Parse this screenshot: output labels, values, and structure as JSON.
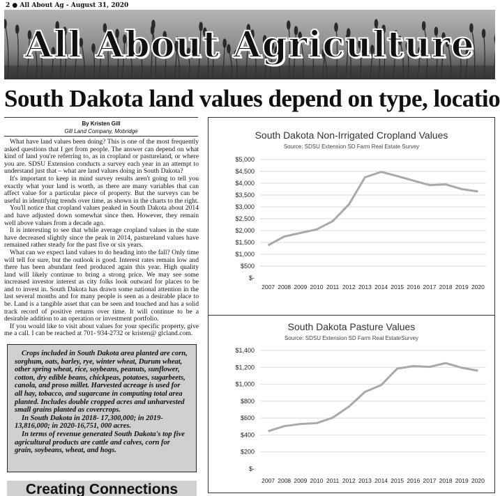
{
  "page": {
    "folio": "2 ● All About Ag - August 31, 2020",
    "banner_title": "All About Agriculture"
  },
  "article": {
    "headline": "South Dakota land values depend on type, location",
    "author": "By Kristen Gill",
    "affiliation": "Gill Land Company, Mobridge",
    "paragraphs": [
      "What have land values been doing? This is one of the most frequently asked questions that I get from people. The answer can depend on what kind of land you're referring to, as in cropland or pastureland, or where you are. SDSU Extension conducts a survey each year in an attempt to understand just that – what are land values doing in South Dakota?",
      "It's important to keep in mind survey results aren't going to tell you exactly what your land is worth, as there are many variables that can affect value for a particular piece of property. But the surveys can be useful in identifying trends over time, as shown in the charts to the right.",
      "You'll notice that cropland values peaked in South Dakota about 2014 and have adjusted down somewhat since then. However, they remain well above values from a decade ago.",
      "It is interesting to see that while average cropland values in the state have decreased slightly since the peak in 2014, pastureland values have remained rather steady for the past five or six years.",
      "What can we expect land values to do heading into the fall? Only time will tell for sure, but the outlook is good. Interest rates remain low and there has been abundant feed produced again this year. High quality land will likely continue to bring a strong price. We may see some increased investor interest as city folks look outward for places to be and to invest in. South Dakota has drawn some national attention in the last several months and for many people is seen as a desirable place to be. Land is a tangible asset that can be seen and touched and has a solid track record of positive returns over time. It will continue to be a desirable addition to an operation or investment portfolio.",
      "If you would like to visit about values for your specific property, give me a call. I can be reached at 701- 934-2732 or kristen@ glcland.com."
    ]
  },
  "sidebar": {
    "paragraphs": [
      "Crops included in South Dakota area planted are corn, sorghum, oats, barley, rye, winter wheat, Durum wheat, other spring wheat, rice, soybeans, peanuts, sunflower, cotton, dry edible beans, chickpeas, potatoes, sugarbeets, canola, and proso millet. Harvested acreage is used for all hay, tobacco, and sugarcane in computing total area planted. Includes double cropped acres and unharvested small grains planted as covercrops.",
      "In South Dakota in 2018- 17,300,000; in 2019- 13,816,000; in 2020-16,751, 000 acres.",
      "In terms of revenue generated South Dakota's top five agricultural products are cattle and calves, corn for grain, soybeans, wheat, and hogs."
    ]
  },
  "next_section": {
    "heading": "Creating Connections"
  },
  "chart_data": [
    {
      "type": "line",
      "title": "South Dakota Non-Irrigated Cropland Values",
      "subtitle": "Source: SDSU Extension SD Farm Real Estate Survey",
      "x": [
        "2007",
        "2008",
        "2009",
        "2010",
        "2011",
        "2012",
        "2013",
        "2014",
        "2015",
        "2016",
        "2017",
        "2018",
        "2019",
        "2020"
      ],
      "series": [
        {
          "values": [
            1380,
            1750,
            1900,
            2050,
            2400,
            3100,
            4250,
            4480,
            4300,
            4110,
            3920,
            3950,
            3750,
            3650
          ]
        }
      ],
      "y_ticks": [
        "$5,000",
        "$4,500",
        "$4,000",
        "$3,500",
        "$3,000",
        "$2,500",
        "$2,000",
        "$1,500",
        "$1,000",
        "$500",
        "$-"
      ],
      "ylim": [
        0,
        5000
      ],
      "grid": true,
      "line_color": "#a9a9a9"
    },
    {
      "type": "line",
      "title": "South Dakota Pasture Values",
      "subtitle": "Source: SDSU Extension SD Farm Real EstateSurvey",
      "x": [
        "2007",
        "2008",
        "2009",
        "2010",
        "2011",
        "2012",
        "2013",
        "2014",
        "2015",
        "2016",
        "2017",
        "2018",
        "2019",
        "2020"
      ],
      "series": [
        {
          "values": [
            445,
            505,
            530,
            540,
            605,
            735,
            910,
            990,
            1185,
            1215,
            1205,
            1250,
            1195,
            1160
          ]
        }
      ],
      "y_ticks": [
        "$1,400",
        "$1,200",
        "$1,000",
        "$800",
        "$600",
        "$400",
        "$200",
        "$-"
      ],
      "ylim": [
        0,
        1400
      ],
      "grid": true,
      "line_color": "#a9a9a9"
    }
  ]
}
